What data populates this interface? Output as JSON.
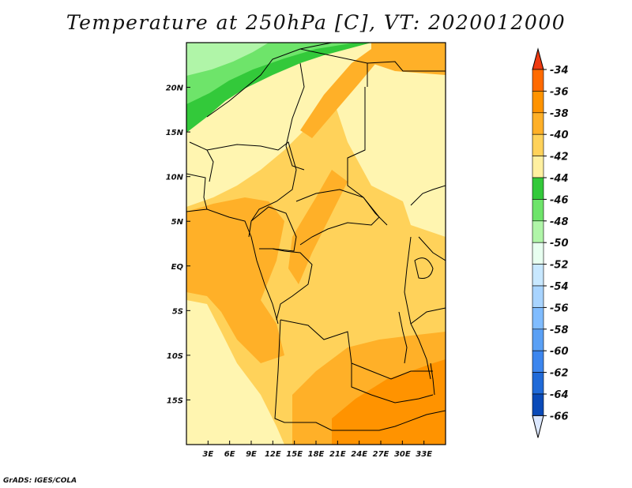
{
  "title": "Temperature at 250hPa [C], VT: 2020012000",
  "credit": "GrADS: IGES/COLA",
  "map": {
    "lon_range": [
      0,
      36
    ],
    "lat_range": [
      -20,
      25
    ],
    "x_ticks": [
      {
        "value": 3,
        "label": "3E"
      },
      {
        "value": 6,
        "label": "6E"
      },
      {
        "value": 9,
        "label": "9E"
      },
      {
        "value": 12,
        "label": "12E"
      },
      {
        "value": 15,
        "label": "15E"
      },
      {
        "value": 18,
        "label": "18E"
      },
      {
        "value": 21,
        "label": "21E"
      },
      {
        "value": 24,
        "label": "24E"
      },
      {
        "value": 27,
        "label": "27E"
      },
      {
        "value": 30,
        "label": "30E"
      },
      {
        "value": 33,
        "label": "33E"
      }
    ],
    "y_ticks": [
      {
        "value": 20,
        "label": "20N"
      },
      {
        "value": 15,
        "label": "15N"
      },
      {
        "value": 10,
        "label": "10N"
      },
      {
        "value": 5,
        "label": "5N"
      },
      {
        "value": 0,
        "label": "EQ"
      },
      {
        "value": -5,
        "label": "5S"
      },
      {
        "value": -10,
        "label": "10S"
      },
      {
        "value": -15,
        "label": "15S"
      }
    ]
  },
  "colorbar": {
    "levels": [
      "-34",
      "-36",
      "-38",
      "-40",
      "-42",
      "-44",
      "-46",
      "-48",
      "-50",
      "-52",
      "-54",
      "-56",
      "-58",
      "-60",
      "-62",
      "-64",
      "-66"
    ],
    "colors": [
      "#ff6a00",
      "#ff9300",
      "#ffb028",
      "#ffd25a",
      "#fff0a0",
      "#33c93a",
      "#6ee46a",
      "#b0f5a8",
      "#e8fff0",
      "#c8e8ff",
      "#a8d4ff",
      "#80bcff",
      "#5aa0f5",
      "#3c86ee",
      "#206ad8",
      "#0a4ab8",
      "#0a1a80"
    ],
    "top_arrow_color": "#ee3a10",
    "bottom_arrow_color": "#dce8ff"
  },
  "field_colors": {
    "t34": "#ff9300",
    "t36": "#ffb028",
    "t38": "#ffd25a",
    "t40": "#ffe68a",
    "t42": "#fff5b0",
    "t44": "#33c93a",
    "t46": "#6ee46a",
    "t48": "#b0f5a8"
  }
}
